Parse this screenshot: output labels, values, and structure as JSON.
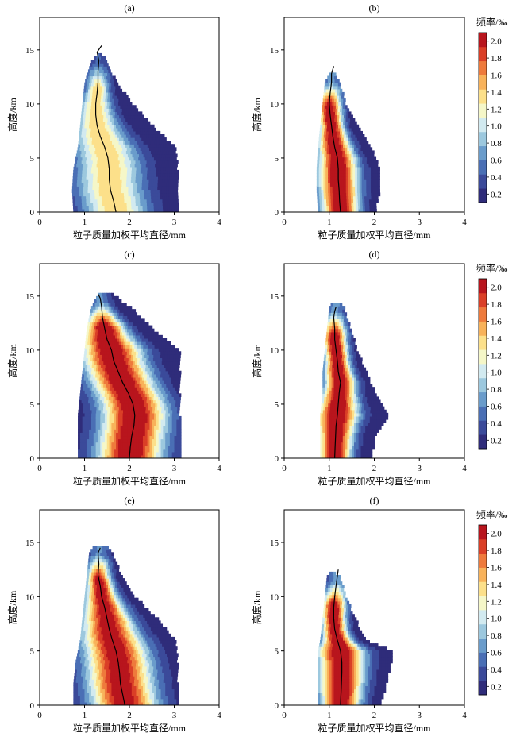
{
  "figure": {
    "colorbar": {
      "title": "频率/‰",
      "ticks": [
        "0.2",
        "0.4",
        "0.6",
        "0.8",
        "1.0",
        "1.2",
        "1.4",
        "1.6",
        "1.8",
        "2.0"
      ],
      "tick_values": [
        0.2,
        0.4,
        0.6,
        0.8,
        1.0,
        1.2,
        1.4,
        1.6,
        1.8,
        2.0
      ],
      "range": [
        0.1,
        2.1
      ],
      "colors": [
        "#2f2c7a",
        "#3b4a9a",
        "#4a6fb5",
        "#6a9ccb",
        "#9cc8de",
        "#d2eaf0",
        "#f5f7c8",
        "#fce08a",
        "#f8b25a",
        "#ee7a3c",
        "#da3f27",
        "#b8151d"
      ]
    },
    "axis_labels": {
      "x": "粒子质量加权平均直径/mm",
      "y": "高度/km"
    },
    "x_ticks": [
      "0",
      "1",
      "2",
      "3",
      "4"
    ],
    "y_ticks": [
      "0",
      "5",
      "10",
      "15"
    ]
  },
  "chart_data": [
    {
      "panel": "(a)",
      "type": "heatmap",
      "xlim": [
        0,
        4
      ],
      "ylim": [
        0,
        18
      ],
      "xlabel": "粒子质量加权平均直径/mm",
      "ylabel": "高度/km",
      "mean_profile": {
        "diameter_mm": [
          1.7,
          1.65,
          1.58,
          1.55,
          1.55,
          1.52,
          1.45,
          1.35,
          1.28,
          1.25,
          1.25,
          1.28,
          1.3,
          1.3,
          1.32,
          1.28,
          1.38
        ],
        "height_km": [
          0,
          1,
          2,
          3,
          4,
          5,
          6,
          7,
          8,
          9,
          10,
          11,
          12,
          13,
          14,
          14.8,
          15.4
        ]
      },
      "envelope": {
        "height_km": [
          0,
          2,
          4,
          6,
          8,
          10,
          12,
          14,
          14.6
        ],
        "min_d_mm": [
          0.75,
          0.72,
          0.75,
          0.85,
          0.9,
          0.95,
          1.0,
          1.15,
          1.3
        ],
        "max_d_mm": [
          3.05,
          3.05,
          3.05,
          3.0,
          2.5,
          2.05,
          1.7,
          1.45,
          1.38
        ]
      },
      "peak_frequency_permil": 1.3
    },
    {
      "panel": "(b)",
      "type": "heatmap",
      "xlim": [
        0,
        4
      ],
      "ylim": [
        0,
        18
      ],
      "xlabel": "粒子质量加权平均直径/mm",
      "ylabel": "高度/km",
      "mean_profile": {
        "diameter_mm": [
          1.25,
          1.23,
          1.22,
          1.2,
          1.2,
          1.18,
          1.12,
          1.08,
          1.05,
          1.02,
          1.0,
          1.02,
          1.05,
          1.05,
          1.1
        ],
        "height_km": [
          0,
          1,
          2,
          3,
          4,
          5,
          6,
          7,
          8,
          9,
          10,
          11,
          12,
          12.8,
          13.5
        ]
      },
      "envelope": {
        "height_km": [
          0,
          2,
          4,
          6,
          8,
          10,
          12,
          12.8
        ],
        "min_d_mm": [
          0.75,
          0.72,
          0.72,
          0.75,
          0.8,
          0.85,
          0.9,
          1.0
        ],
        "max_d_mm": [
          2.0,
          2.1,
          2.1,
          1.9,
          1.6,
          1.35,
          1.2,
          1.1
        ]
      },
      "peak_frequency_permil": 2.1
    },
    {
      "panel": "(c)",
      "type": "heatmap",
      "xlim": [
        0,
        4
      ],
      "ylim": [
        0,
        18
      ],
      "xlabel": "粒子质量加权平均直径/mm",
      "ylabel": "高度/km",
      "mean_profile": {
        "diameter_mm": [
          2.0,
          2.02,
          2.05,
          2.1,
          2.12,
          2.08,
          1.98,
          1.85,
          1.75,
          1.65,
          1.6,
          1.5,
          1.45,
          1.4,
          1.38,
          1.35,
          1.3
        ],
        "height_km": [
          0,
          1,
          2,
          3,
          4,
          5,
          6,
          7,
          8,
          9,
          10,
          11,
          12,
          13,
          14,
          14.8,
          15.2
        ]
      },
      "envelope": {
        "height_km": [
          0,
          2,
          4,
          6,
          8,
          10,
          12,
          14,
          15.2
        ],
        "min_d_mm": [
          0.85,
          0.85,
          0.85,
          0.9,
          0.95,
          1.0,
          1.05,
          1.15,
          1.3
        ],
        "max_d_mm": [
          3.1,
          3.1,
          3.1,
          3.1,
          3.1,
          3.1,
          2.5,
          2.0,
          1.6
        ]
      },
      "peak_frequency_permil": 2.1
    },
    {
      "panel": "(d)",
      "type": "heatmap",
      "xlim": [
        0,
        4
      ],
      "ylim": [
        0,
        18
      ],
      "xlabel": "粒子质量加权平均直径/mm",
      "ylabel": "高度/km",
      "mean_profile": {
        "diameter_mm": [
          1.12,
          1.13,
          1.14,
          1.15,
          1.18,
          1.2,
          1.22,
          1.25,
          1.2,
          1.18,
          1.15,
          1.12,
          1.12,
          1.1,
          1.12,
          1.15
        ],
        "height_km": [
          0,
          1,
          2,
          3,
          4,
          5,
          6,
          7,
          8,
          9,
          10,
          11,
          12,
          13,
          13.6,
          14.0
        ]
      },
      "envelope": {
        "height_km": [
          0,
          2,
          4,
          6,
          8,
          10,
          12,
          14,
          14.4
        ],
        "min_d_mm": [
          0.8,
          0.8,
          0.8,
          0.85,
          0.85,
          0.9,
          0.95,
          1.0,
          1.05
        ],
        "max_d_mm": [
          1.9,
          2.0,
          2.3,
          2.0,
          1.8,
          1.6,
          1.45,
          1.3,
          1.2
        ]
      },
      "peak_frequency_permil": 2.1
    },
    {
      "panel": "(e)",
      "type": "heatmap",
      "xlim": [
        0,
        4
      ],
      "ylim": [
        0,
        18
      ],
      "xlabel": "粒子质量加权平均直径/mm",
      "ylabel": "高度/km",
      "mean_profile": {
        "diameter_mm": [
          1.9,
          1.85,
          1.8,
          1.78,
          1.75,
          1.7,
          1.62,
          1.55,
          1.5,
          1.45,
          1.38,
          1.35,
          1.3,
          1.32,
          1.3,
          1.35
        ],
        "height_km": [
          0,
          1,
          2,
          3,
          4,
          5,
          6,
          7,
          8,
          9,
          10,
          11,
          12,
          13,
          14,
          14.5
        ]
      },
      "envelope": {
        "height_km": [
          0,
          2,
          4,
          6,
          8,
          10,
          12,
          14,
          14.7
        ],
        "min_d_mm": [
          0.75,
          0.75,
          0.8,
          0.9,
          0.95,
          1.0,
          1.05,
          1.1,
          1.2
        ],
        "max_d_mm": [
          3.05,
          3.05,
          3.05,
          3.0,
          2.6,
          2.1,
          1.8,
          1.6,
          1.45
        ]
      },
      "peak_frequency_permil": 2.0
    },
    {
      "panel": "(f)",
      "type": "heatmap",
      "xlim": [
        0,
        4
      ],
      "ylim": [
        0,
        18
      ],
      "xlabel": "粒子质量加权平均直径/mm",
      "ylabel": "高度/km",
      "mean_profile": {
        "diameter_mm": [
          1.25,
          1.26,
          1.27,
          1.28,
          1.28,
          1.25,
          1.18,
          1.12,
          1.1,
          1.1,
          1.12,
          1.15,
          1.2
        ],
        "height_km": [
          0,
          1,
          2,
          3,
          4,
          5,
          6,
          7,
          8,
          9,
          10,
          11,
          12.5
        ]
      },
      "envelope": {
        "height_km": [
          0,
          2,
          4,
          5,
          6,
          8,
          10,
          12,
          12.2
        ],
        "min_d_mm": [
          0.75,
          0.75,
          0.75,
          0.75,
          0.8,
          0.85,
          0.9,
          0.95,
          1.0
        ],
        "max_d_mm": [
          2.1,
          2.25,
          2.35,
          2.4,
          1.8,
          1.55,
          1.35,
          1.2,
          1.1
        ]
      },
      "peak_frequency_permil": 2.1
    }
  ]
}
